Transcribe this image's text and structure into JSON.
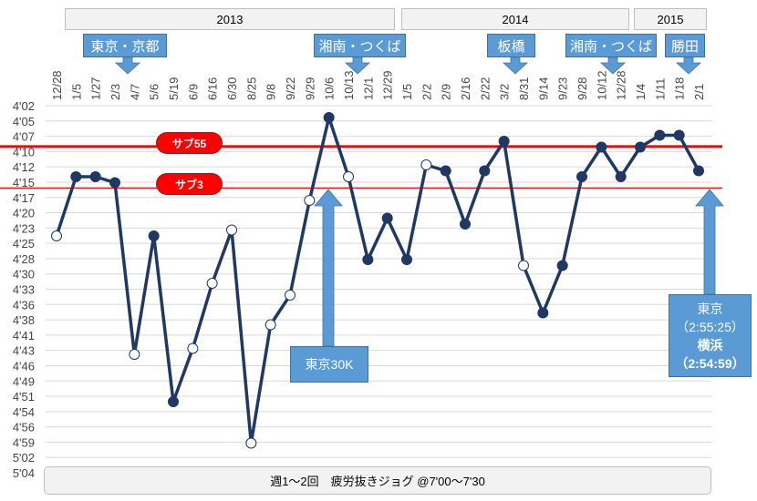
{
  "chart_data": {
    "type": "line",
    "categories": [
      "12/28",
      "1/5",
      "1/27",
      "2/3",
      "4/7",
      "5/6",
      "5/19",
      "6/9",
      "6/16",
      "6/30",
      "8/25",
      "9/8",
      "9/22",
      "9/29",
      "10/6",
      "10/13",
      "12/1",
      "12/29",
      "1/5",
      "2/2",
      "2/9",
      "2/16",
      "2/22",
      "3/2",
      "8/31",
      "9/14",
      "9/23",
      "9/28",
      "10/12",
      "12/28",
      "1/4",
      "1/11",
      "1/18",
      "2/1"
    ],
    "values": [
      "4'24",
      "4'14",
      "4'14",
      "4'15",
      "4'44",
      "4'24",
      "4'52",
      "4'43",
      "4'32",
      "4'23",
      "4'59",
      "4'39",
      "4'34",
      "4'18",
      "4'04",
      "4'14",
      "4'28",
      "4'21",
      "4'28",
      "4'12",
      "4'13",
      "4'22",
      "4'13",
      "4'08",
      "4'29",
      "4'37",
      "4'29",
      "4'14",
      "4'09",
      "4'14",
      "4'09",
      "4'07",
      "4'07",
      "4'13"
    ],
    "marker_filled": [
      false,
      true,
      true,
      true,
      false,
      true,
      true,
      false,
      false,
      false,
      false,
      false,
      false,
      false,
      true,
      false,
      true,
      true,
      true,
      false,
      true,
      true,
      true,
      true,
      false,
      true,
      true,
      true,
      true,
      true,
      true,
      true,
      true,
      true
    ],
    "y_ticks": [
      "4'02",
      "4'05",
      "4'07",
      "4'10",
      "4'12",
      "4'15",
      "4'17",
      "4'20",
      "4'23",
      "4'25",
      "4'28",
      "4'30",
      "4'33",
      "4'36",
      "4'38",
      "4'41",
      "4'43",
      "4'46",
      "4'49",
      "4'51",
      "4'54",
      "4'56",
      "4'59",
      "5'02",
      "5'04"
    ],
    "ylim": [
      "4'02",
      "5'04"
    ],
    "y_inverted": true,
    "grid": true,
    "line_color": "#1f3864",
    "reference_lines": [
      {
        "label": "サブ55",
        "value": "4'08.9",
        "color": "#ff0000"
      },
      {
        "label": "サブ3",
        "value": "4'15.9",
        "color": "#ff0000"
      }
    ],
    "year_groups": [
      "2013",
      "2014",
      "2015"
    ],
    "annotations": {
      "top": [
        "東京・京都",
        "湘南・つくば",
        "板橋",
        "湘南・つくば",
        "勝田"
      ],
      "tokyo30k": "東京30K",
      "result": {
        "line1": "東京",
        "line2": "（2:55:25）",
        "line3": "横浜",
        "line4": "（2:54:59）"
      },
      "footer": "週1～2回　疲労抜きジョグ @7'00～7'30"
    }
  }
}
